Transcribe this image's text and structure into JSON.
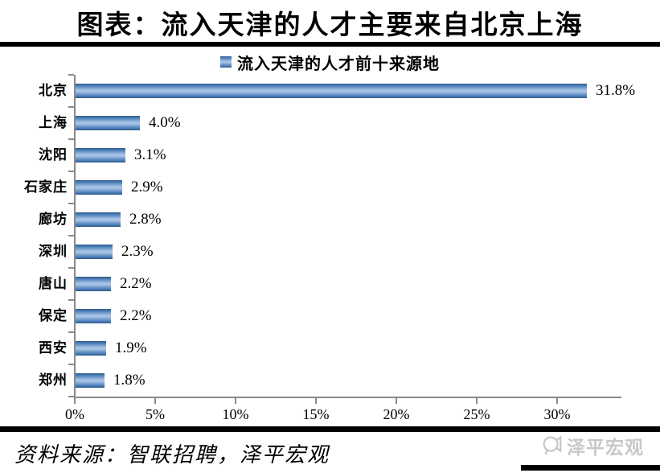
{
  "page": {
    "title": "图表：流入天津的人才主要来自北京上海",
    "source_note": "资料来源：智联招聘，泽平宏观",
    "watermark_text": "泽平宏观"
  },
  "chart_data": {
    "type": "bar",
    "orientation": "horizontal",
    "title": "流入天津的人才前十来源地",
    "legend_position": "top-center",
    "categories": [
      "北京",
      "上海",
      "沈阳",
      "石家庄",
      "廊坊",
      "深圳",
      "唐山",
      "保定",
      "西安",
      "郑州"
    ],
    "values": [
      31.8,
      4.0,
      3.1,
      2.9,
      2.8,
      2.3,
      2.2,
      2.2,
      1.9,
      1.8
    ],
    "value_labels": [
      "31.8%",
      "4.0%",
      "3.1%",
      "2.9%",
      "2.8%",
      "2.3%",
      "2.2%",
      "2.2%",
      "1.9%",
      "1.8%"
    ],
    "xlabel": "",
    "ylabel": "",
    "xlim": [
      0,
      34
    ],
    "x_tick_values": [
      0,
      5,
      10,
      15,
      20,
      25,
      30
    ],
    "x_ticks": [
      "0%",
      "5%",
      "10%",
      "15%",
      "20%",
      "25%",
      "30%"
    ],
    "grid": false,
    "bar_color": "#4f81bd",
    "bar_highlight": "#a6c3e3",
    "bar_edge": "#2e5a86",
    "axis_color": "#8a8a8a",
    "text_color": "#000000",
    "watermark_color": "#c8c8c8"
  }
}
